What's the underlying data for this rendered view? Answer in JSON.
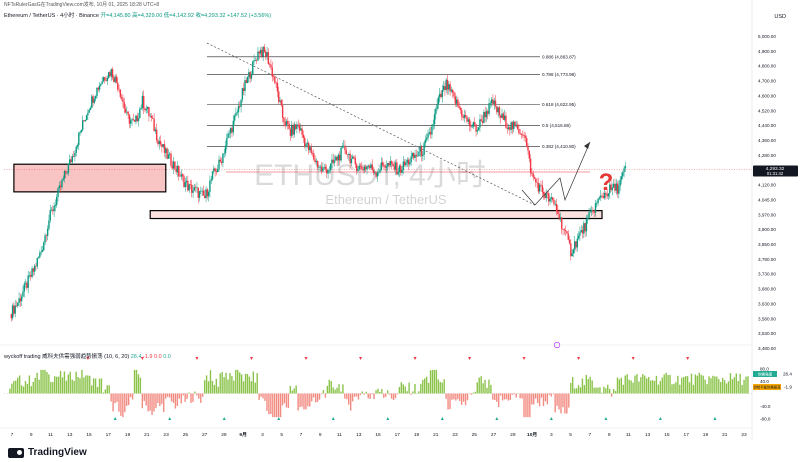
{
  "header": {
    "publisher": "NFTsRulerGasG在TradingView.com发布, 10月 01, 2025 18:28 UTC+8",
    "symbol": "Ethereum / TetherUS · 4小时 · Binance",
    "ohlc": "开=4,145.80  高=4,329.00  低=4,142.92  收=4,293.32  +147.52 (+3.56%)",
    "currency": "USD"
  },
  "watermark": {
    "main": "ETHUSDT, 4小时",
    "sub": "Ethereum / TetherUS"
  },
  "price_badge": {
    "price": "4,293.32",
    "countdown": "01:31:42"
  },
  "question_mark": "?",
  "brand": "TradingView",
  "indicator": {
    "legend": "wyckoff trading 威科夫供需强弱趋势振荡 (10, 6, 20)",
    "v1": "28.4",
    "v2": "-1.9",
    "v3": "0.0",
    "v4": "0.0",
    "badge_green_label": "供需强度",
    "badge_green_value": "28.4",
    "badge_orange_label": "供给平衡供需振荡",
    "badge_orange_value": "-1.9",
    "ticks": [
      "80.0",
      "40.0",
      "-40.0",
      "-80.0"
    ]
  },
  "chart_data": {
    "type": "candlestick",
    "title": "Ethereum / TetherUS · 4小时 · Binance",
    "y_ticks": [
      "5,000.00",
      "4,900.00",
      "4,800.00",
      "4,700.00",
      "4,600.00",
      "4,520.00",
      "4,440.00",
      "4,360.00",
      "4,280.00",
      "4,200.00",
      "4,120.00",
      "4,045.00",
      "3,970.00",
      "3,900.00",
      "3,850.00",
      "3,780.00",
      "3,730.00",
      "3,680.00",
      "3,630.00",
      "3,580.00",
      "3,530.00",
      "3,480.00"
    ],
    "x_ticks": [
      "7",
      "9",
      "11",
      "13",
      "15",
      "17",
      "19",
      "21",
      "23",
      "25",
      "27",
      "29",
      "9月",
      "3",
      "5",
      "7",
      "9",
      "11",
      "13",
      "15",
      "17",
      "19",
      "21",
      "23",
      "25",
      "27",
      "29",
      "10月",
      "3",
      "5",
      "7",
      "9",
      "11",
      "13",
      "15",
      "17",
      "19",
      "21",
      "23"
    ],
    "fib_levels": [
      {
        "label": "0.886 (4,863.87)",
        "value": 4863.87
      },
      {
        "label": "0.786 (4,773.98)",
        "value": 4773.98
      },
      {
        "label": "0.618 (4,622.95)",
        "value": 4622.95
      },
      {
        "label": "0.5 (4,516.88)",
        "value": 4516.88
      },
      {
        "label": "0.382 (4,410.80)",
        "value": 4410.8
      }
    ],
    "zones": [
      {
        "name": "upper-left resistance box",
        "low": 4180,
        "high": 4320,
        "from_day": 0.5,
        "to_day": 20
      },
      {
        "name": "long support band",
        "low": 4045,
        "high": 4085,
        "from_day": 18,
        "to_day": 76
      }
    ],
    "current_price": 4293.32,
    "price_path": [
      [
        0,
        3560
      ],
      [
        1,
        3620
      ],
      [
        2,
        3700
      ],
      [
        3,
        3780
      ],
      [
        4,
        3880
      ],
      [
        5,
        4040
      ],
      [
        6,
        4150
      ],
      [
        7,
        4260
      ],
      [
        8,
        4360
      ],
      [
        9,
        4480
      ],
      [
        10,
        4600
      ],
      [
        11,
        4690
      ],
      [
        12,
        4760
      ],
      [
        13,
        4790
      ],
      [
        14,
        4710
      ],
      [
        15,
        4560
      ],
      [
        16,
        4520
      ],
      [
        17,
        4640
      ],
      [
        18,
        4560
      ],
      [
        19,
        4450
      ],
      [
        20,
        4370
      ],
      [
        21,
        4320
      ],
      [
        22,
        4250
      ],
      [
        23,
        4200
      ],
      [
        24,
        4180
      ],
      [
        25,
        4150
      ],
      [
        26,
        4260
      ],
      [
        27,
        4330
      ],
      [
        28,
        4460
      ],
      [
        29,
        4560
      ],
      [
        30,
        4700
      ],
      [
        31,
        4800
      ],
      [
        32,
        4900
      ],
      [
        33,
        4870
      ],
      [
        34,
        4740
      ],
      [
        35,
        4560
      ],
      [
        36,
        4480
      ],
      [
        37,
        4520
      ],
      [
        38,
        4420
      ],
      [
        39,
        4350
      ],
      [
        40,
        4290
      ],
      [
        41,
        4300
      ],
      [
        42,
        4350
      ],
      [
        43,
        4400
      ],
      [
        44,
        4330
      ],
      [
        45,
        4300
      ],
      [
        46,
        4310
      ],
      [
        47,
        4280
      ],
      [
        48,
        4320
      ],
      [
        49,
        4310
      ],
      [
        50,
        4290
      ],
      [
        51,
        4330
      ],
      [
        52,
        4360
      ],
      [
        53,
        4390
      ],
      [
        54,
        4480
      ],
      [
        55,
        4640
      ],
      [
        56,
        4720
      ],
      [
        57,
        4650
      ],
      [
        58,
        4580
      ],
      [
        59,
        4520
      ],
      [
        60,
        4500
      ],
      [
        61,
        4580
      ],
      [
        62,
        4630
      ],
      [
        63,
        4560
      ],
      [
        64,
        4520
      ],
      [
        65,
        4500
      ],
      [
        66,
        4480
      ],
      [
        67,
        4260
      ],
      [
        68,
        4200
      ],
      [
        69,
        4150
      ],
      [
        70,
        4110
      ],
      [
        71,
        4000
      ],
      [
        72,
        3880
      ],
      [
        73,
        3950
      ],
      [
        74,
        4020
      ],
      [
        75,
        4100
      ],
      [
        76,
        4160
      ],
      [
        77,
        4190
      ],
      [
        78,
        4200
      ],
      [
        79,
        4293
      ]
    ]
  }
}
